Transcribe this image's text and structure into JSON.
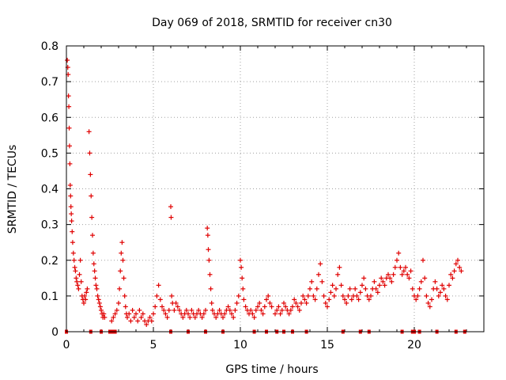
{
  "chart_data": {
    "type": "scatter",
    "title": "Day 069 of 2018, SRMTID for receiver cn30",
    "xlabel": "GPS time / hours",
    "ylabel": "SRMTID / TECUs",
    "xlim": [
      0,
      24
    ],
    "ylim": [
      0,
      0.8
    ],
    "xticks": [
      "0",
      "5",
      "10",
      "15",
      "20"
    ],
    "yticks": [
      "0",
      "0.1",
      "0.2",
      "0.3",
      "0.4",
      "0.5",
      "0.6",
      "0.7",
      "0.8"
    ],
    "grid": true,
    "marker": "+",
    "color": "#e00000",
    "series": [
      {
        "name": "SRMTID",
        "points": [
          [
            0.05,
            0.76
          ],
          [
            0.08,
            0.74
          ],
          [
            0.1,
            0.72
          ],
          [
            0.12,
            0.66
          ],
          [
            0.14,
            0.63
          ],
          [
            0.16,
            0.57
          ],
          [
            0.18,
            0.52
          ],
          [
            0.2,
            0.47
          ],
          [
            0.22,
            0.41
          ],
          [
            0.24,
            0.38
          ],
          [
            0.26,
            0.35
          ],
          [
            0.28,
            0.33
          ],
          [
            0.3,
            0.31
          ],
          [
            0.33,
            0.28
          ],
          [
            0.36,
            0.25
          ],
          [
            0.4,
            0.22
          ],
          [
            0.44,
            0.2
          ],
          [
            0.48,
            0.18
          ],
          [
            0.52,
            0.17
          ],
          [
            0.56,
            0.15
          ],
          [
            0.6,
            0.14
          ],
          [
            0.65,
            0.13
          ],
          [
            0.7,
            0.12
          ],
          [
            0.75,
            0.16
          ],
          [
            0.8,
            0.2
          ],
          [
            0.85,
            0.14
          ],
          [
            0.9,
            0.1
          ],
          [
            0.95,
            0.09
          ],
          [
            1.0,
            0.08
          ],
          [
            1.05,
            0.1
          ],
          [
            1.1,
            0.09
          ],
          [
            1.15,
            0.11
          ],
          [
            1.2,
            0.12
          ],
          [
            1.3,
            0.56
          ],
          [
            1.34,
            0.5
          ],
          [
            1.38,
            0.44
          ],
          [
            1.42,
            0.38
          ],
          [
            1.46,
            0.32
          ],
          [
            1.5,
            0.27
          ],
          [
            1.54,
            0.22
          ],
          [
            1.58,
            0.19
          ],
          [
            1.62,
            0.17
          ],
          [
            1.66,
            0.15
          ],
          [
            1.7,
            0.13
          ],
          [
            1.75,
            0.12
          ],
          [
            1.8,
            0.1
          ],
          [
            1.85,
            0.09
          ],
          [
            1.9,
            0.08
          ],
          [
            1.95,
            0.07
          ],
          [
            2.0,
            0.06
          ],
          [
            2.05,
            0.05
          ],
          [
            2.1,
            0.04
          ],
          [
            2.15,
            0.05
          ],
          [
            2.2,
            0.04
          ],
          [
            2.6,
            0.03
          ],
          [
            2.7,
            0.04
          ],
          [
            2.8,
            0.05
          ],
          [
            2.9,
            0.06
          ],
          [
            3.0,
            0.08
          ],
          [
            3.05,
            0.12
          ],
          [
            3.1,
            0.17
          ],
          [
            3.15,
            0.22
          ],
          [
            3.2,
            0.25
          ],
          [
            3.25,
            0.2
          ],
          [
            3.3,
            0.15
          ],
          [
            3.35,
            0.1
          ],
          [
            3.4,
            0.07
          ],
          [
            3.45,
            0.05
          ],
          [
            3.5,
            0.04
          ],
          [
            3.6,
            0.05
          ],
          [
            3.7,
            0.03
          ],
          [
            3.8,
            0.06
          ],
          [
            3.9,
            0.04
          ],
          [
            4.0,
            0.05
          ],
          [
            4.1,
            0.03
          ],
          [
            4.2,
            0.06
          ],
          [
            4.3,
            0.04
          ],
          [
            4.4,
            0.05
          ],
          [
            4.5,
            0.03
          ],
          [
            4.6,
            0.02
          ],
          [
            4.7,
            0.03
          ],
          [
            4.8,
            0.04
          ],
          [
            4.9,
            0.03
          ],
          [
            5.0,
            0.05
          ],
          [
            5.1,
            0.07
          ],
          [
            5.2,
            0.1
          ],
          [
            5.3,
            0.13
          ],
          [
            5.4,
            0.09
          ],
          [
            5.5,
            0.07
          ],
          [
            5.6,
            0.06
          ],
          [
            5.7,
            0.05
          ],
          [
            5.8,
            0.04
          ],
          [
            5.9,
            0.06
          ],
          [
            6.0,
            0.35
          ],
          [
            6.02,
            0.32
          ],
          [
            6.05,
            0.1
          ],
          [
            6.1,
            0.08
          ],
          [
            6.2,
            0.06
          ],
          [
            6.3,
            0.08
          ],
          [
            6.4,
            0.07
          ],
          [
            6.5,
            0.06
          ],
          [
            6.6,
            0.05
          ],
          [
            6.7,
            0.04
          ],
          [
            6.8,
            0.05
          ],
          [
            6.9,
            0.06
          ],
          [
            7.0,
            0.05
          ],
          [
            7.1,
            0.04
          ],
          [
            7.2,
            0.06
          ],
          [
            7.3,
            0.05
          ],
          [
            7.4,
            0.04
          ],
          [
            7.5,
            0.05
          ],
          [
            7.6,
            0.06
          ],
          [
            7.7,
            0.05
          ],
          [
            7.8,
            0.04
          ],
          [
            7.9,
            0.05
          ],
          [
            8.0,
            0.06
          ],
          [
            8.1,
            0.29
          ],
          [
            8.13,
            0.27
          ],
          [
            8.16,
            0.23
          ],
          [
            8.2,
            0.2
          ],
          [
            8.25,
            0.16
          ],
          [
            8.3,
            0.12
          ],
          [
            8.35,
            0.08
          ],
          [
            8.4,
            0.06
          ],
          [
            8.5,
            0.05
          ],
          [
            8.6,
            0.04
          ],
          [
            8.7,
            0.05
          ],
          [
            8.8,
            0.06
          ],
          [
            8.9,
            0.05
          ],
          [
            9.0,
            0.04
          ],
          [
            9.1,
            0.05
          ],
          [
            9.2,
            0.06
          ],
          [
            9.3,
            0.07
          ],
          [
            9.4,
            0.06
          ],
          [
            9.5,
            0.05
          ],
          [
            9.6,
            0.04
          ],
          [
            9.7,
            0.06
          ],
          [
            9.8,
            0.08
          ],
          [
            9.9,
            0.1
          ],
          [
            10.0,
            0.2
          ],
          [
            10.05,
            0.18
          ],
          [
            10.1,
            0.15
          ],
          [
            10.15,
            0.12
          ],
          [
            10.2,
            0.09
          ],
          [
            10.3,
            0.07
          ],
          [
            10.4,
            0.06
          ],
          [
            10.5,
            0.05
          ],
          [
            10.6,
            0.06
          ],
          [
            10.7,
            0.05
          ],
          [
            10.8,
            0.04
          ],
          [
            10.9,
            0.06
          ],
          [
            11.0,
            0.07
          ],
          [
            11.1,
            0.08
          ],
          [
            11.2,
            0.06
          ],
          [
            11.3,
            0.05
          ],
          [
            11.4,
            0.07
          ],
          [
            11.5,
            0.09
          ],
          [
            11.6,
            0.1
          ],
          [
            11.7,
            0.08
          ],
          [
            11.8,
            0.07
          ],
          [
            12.0,
            0.05
          ],
          [
            12.1,
            0.06
          ],
          [
            12.2,
            0.07
          ],
          [
            12.3,
            0.05
          ],
          [
            12.4,
            0.06
          ],
          [
            12.5,
            0.08
          ],
          [
            12.6,
            0.07
          ],
          [
            12.7,
            0.06
          ],
          [
            12.8,
            0.05
          ],
          [
            12.9,
            0.06
          ],
          [
            13.0,
            0.07
          ],
          [
            13.1,
            0.09
          ],
          [
            13.2,
            0.08
          ],
          [
            13.3,
            0.07
          ],
          [
            13.4,
            0.06
          ],
          [
            13.5,
            0.08
          ],
          [
            13.6,
            0.1
          ],
          [
            13.7,
            0.09
          ],
          [
            13.8,
            0.08
          ],
          [
            13.9,
            0.1
          ],
          [
            14.0,
            0.12
          ],
          [
            14.1,
            0.14
          ],
          [
            14.2,
            0.1
          ],
          [
            14.3,
            0.09
          ],
          [
            14.4,
            0.12
          ],
          [
            14.5,
            0.16
          ],
          [
            14.6,
            0.19
          ],
          [
            14.7,
            0.14
          ],
          [
            14.8,
            0.1
          ],
          [
            14.9,
            0.08
          ],
          [
            15.0,
            0.07
          ],
          [
            15.1,
            0.09
          ],
          [
            15.2,
            0.11
          ],
          [
            15.3,
            0.13
          ],
          [
            15.4,
            0.1
          ],
          [
            15.5,
            0.12
          ],
          [
            15.6,
            0.16
          ],
          [
            15.7,
            0.18
          ],
          [
            15.8,
            0.13
          ],
          [
            15.9,
            0.1
          ],
          [
            16.0,
            0.09
          ],
          [
            16.1,
            0.08
          ],
          [
            16.2,
            0.1
          ],
          [
            16.3,
            0.12
          ],
          [
            16.4,
            0.09
          ],
          [
            16.5,
            0.1
          ],
          [
            16.6,
            0.12
          ],
          [
            16.7,
            0.1
          ],
          [
            16.8,
            0.09
          ],
          [
            16.9,
            0.11
          ],
          [
            17.0,
            0.13
          ],
          [
            17.1,
            0.15
          ],
          [
            17.2,
            0.12
          ],
          [
            17.3,
            0.1
          ],
          [
            17.4,
            0.09
          ],
          [
            17.5,
            0.1
          ],
          [
            17.6,
            0.12
          ],
          [
            17.7,
            0.14
          ],
          [
            17.8,
            0.12
          ],
          [
            17.9,
            0.11
          ],
          [
            18.0,
            0.13
          ],
          [
            18.1,
            0.15
          ],
          [
            18.2,
            0.14
          ],
          [
            18.3,
            0.13
          ],
          [
            18.4,
            0.15
          ],
          [
            18.5,
            0.16
          ],
          [
            18.6,
            0.15
          ],
          [
            18.7,
            0.14
          ],
          [
            18.8,
            0.16
          ],
          [
            18.9,
            0.18
          ],
          [
            19.0,
            0.2
          ],
          [
            19.1,
            0.22
          ],
          [
            19.2,
            0.18
          ],
          [
            19.3,
            0.16
          ],
          [
            19.4,
            0.17
          ],
          [
            19.5,
            0.18
          ],
          [
            19.6,
            0.16
          ],
          [
            19.7,
            0.15
          ],
          [
            19.8,
            0.17
          ],
          [
            19.9,
            0.12
          ],
          [
            20.0,
            0.1
          ],
          [
            20.1,
            0.09
          ],
          [
            20.2,
            0.1
          ],
          [
            20.3,
            0.12
          ],
          [
            20.4,
            0.14
          ],
          [
            20.5,
            0.2
          ],
          [
            20.6,
            0.15
          ],
          [
            20.7,
            0.1
          ],
          [
            20.8,
            0.08
          ],
          [
            20.9,
            0.07
          ],
          [
            21.0,
            0.09
          ],
          [
            21.1,
            0.12
          ],
          [
            21.2,
            0.14
          ],
          [
            21.3,
            0.12
          ],
          [
            21.4,
            0.1
          ],
          [
            21.5,
            0.11
          ],
          [
            21.6,
            0.13
          ],
          [
            21.7,
            0.12
          ],
          [
            21.8,
            0.1
          ],
          [
            21.9,
            0.09
          ],
          [
            22.0,
            0.13
          ],
          [
            22.1,
            0.16
          ],
          [
            22.2,
            0.15
          ],
          [
            22.3,
            0.17
          ],
          [
            22.4,
            0.19
          ],
          [
            22.5,
            0.2
          ],
          [
            22.6,
            0.18
          ],
          [
            22.7,
            0.17
          ]
        ]
      }
    ],
    "gaps_x": [
      0,
      1.4,
      2.0,
      2.5,
      2.6,
      2.7,
      2.8,
      6.0,
      7.0,
      8.0,
      9.0,
      10.8,
      11.5,
      12.1,
      12.5,
      13.0,
      13.8,
      15.9,
      16.9,
      17.4,
      19.3,
      19.9,
      20.0,
      20.3,
      21.3,
      22.4,
      22.9
    ]
  }
}
